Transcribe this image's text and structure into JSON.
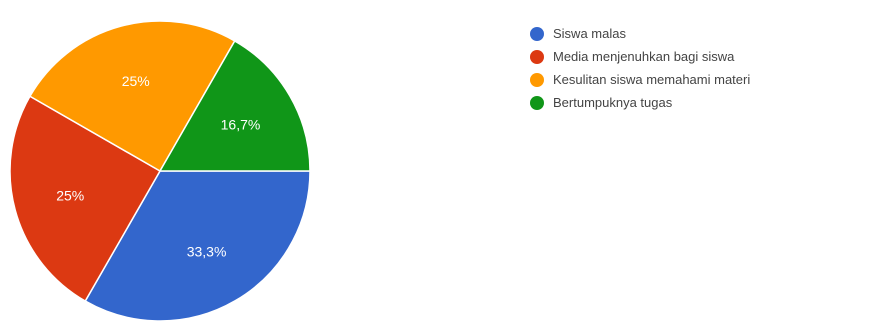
{
  "chart_data": {
    "type": "pie",
    "title": "",
    "slices": [
      {
        "label": "Siswa malas",
        "value": 33.3,
        "display": "33,3%",
        "color": "#3366cc"
      },
      {
        "label": "Media menjenuhkan bagi siswa",
        "value": 25,
        "display": "25%",
        "color": "#dc3912"
      },
      {
        "label": "Kesulitan siswa memahami materi",
        "value": 25,
        "display": "25%",
        "color": "#ff9900"
      },
      {
        "label": "Bertumpuknya tugas",
        "value": 16.7,
        "display": "16,7%",
        "color": "#109618"
      }
    ],
    "start_angle_deg": 90,
    "direction": "clockwise",
    "legend_position": "right"
  }
}
